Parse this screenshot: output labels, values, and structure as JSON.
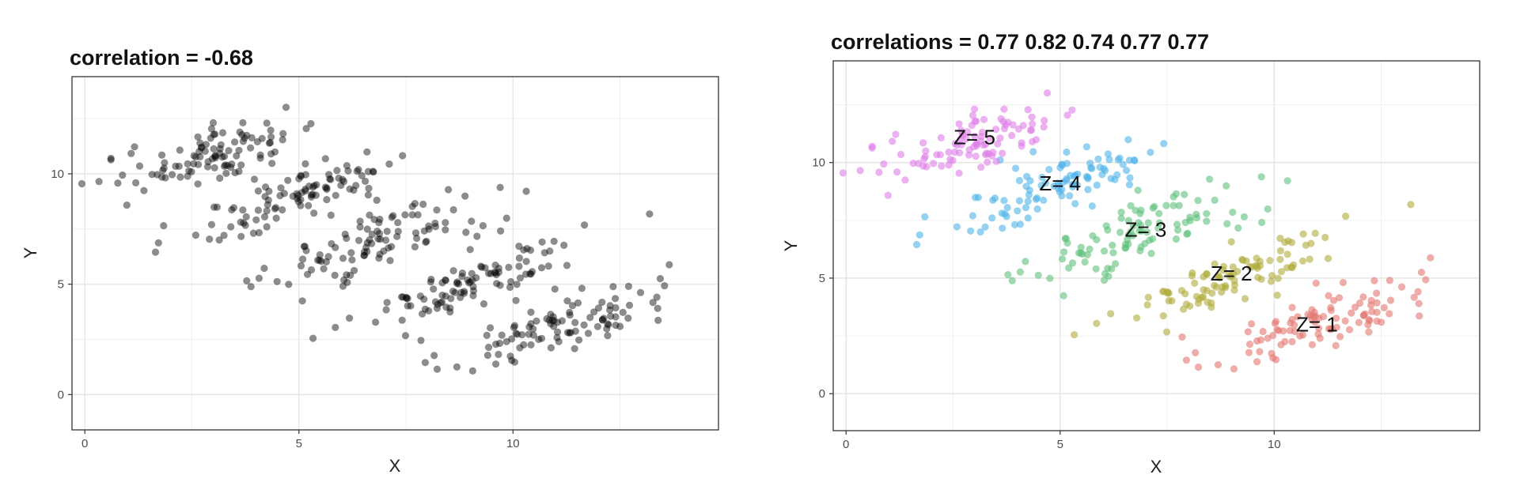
{
  "chart_data": [
    {
      "type": "scatter",
      "title": "correlation =  -0.68",
      "xlabel": "X",
      "ylabel": "Y",
      "xlim": [
        -0.3,
        14.8
      ],
      "ylim": [
        -1.6,
        14.4
      ],
      "xticks": [
        0,
        5,
        10
      ],
      "yticks": [
        0,
        5,
        10
      ],
      "grid": true,
      "point_color": "#000000",
      "point_opacity": 0.45,
      "series": [
        {
          "name": "",
          "color": "#000000",
          "clusters": [
            1,
            2,
            3,
            4,
            5
          ]
        }
      ]
    },
    {
      "type": "scatter",
      "title": "correlations = 0.77 0.82 0.74 0.77 0.77",
      "xlabel": "X",
      "ylabel": "Y",
      "xlim": [
        -0.3,
        14.8
      ],
      "ylim": [
        -1.6,
        14.4
      ],
      "xticks": [
        0,
        5,
        10
      ],
      "yticks": [
        0,
        5,
        10
      ],
      "grid": true,
      "point_opacity": 0.6,
      "annotations": [
        {
          "text": "Z= 1",
          "x": 11.0,
          "y": 3.0
        },
        {
          "text": "Z= 2",
          "x": 9.0,
          "y": 5.2
        },
        {
          "text": "Z= 3",
          "x": 7.0,
          "y": 7.1
        },
        {
          "text": "Z= 4",
          "x": 5.0,
          "y": 9.1
        },
        {
          "text": "Z= 5",
          "x": 3.0,
          "y": 11.1
        }
      ],
      "series": [
        {
          "name": "Z= 1",
          "color": "#E5776F",
          "cluster": 1
        },
        {
          "name": "Z= 2",
          "color": "#AFAB3A",
          "cluster": 2
        },
        {
          "name": "Z= 3",
          "color": "#5EBF7C",
          "cluster": 3
        },
        {
          "name": "Z= 4",
          "color": "#4FB2E8",
          "cluster": 4
        },
        {
          "name": "Z= 5",
          "color": "#DE7DE8",
          "cluster": 5
        }
      ]
    }
  ],
  "clusters": [
    {
      "id": 1,
      "n": 100,
      "center": [
        11.0,
        3.1
      ],
      "sd": [
        1.3,
        1.05
      ],
      "r": 0.77
    },
    {
      "id": 2,
      "n": 100,
      "center": [
        9.0,
        5.1
      ],
      "sd": [
        1.3,
        1.0
      ],
      "r": 0.82
    },
    {
      "id": 3,
      "n": 100,
      "center": [
        7.0,
        7.0
      ],
      "sd": [
        1.3,
        1.05
      ],
      "r": 0.74
    },
    {
      "id": 4,
      "n": 100,
      "center": [
        5.0,
        9.1
      ],
      "sd": [
        1.3,
        1.05
      ],
      "r": 0.77
    },
    {
      "id": 5,
      "n": 100,
      "center": [
        3.0,
        10.9
      ],
      "sd": [
        1.3,
        1.0
      ],
      "r": 0.77
    }
  ]
}
